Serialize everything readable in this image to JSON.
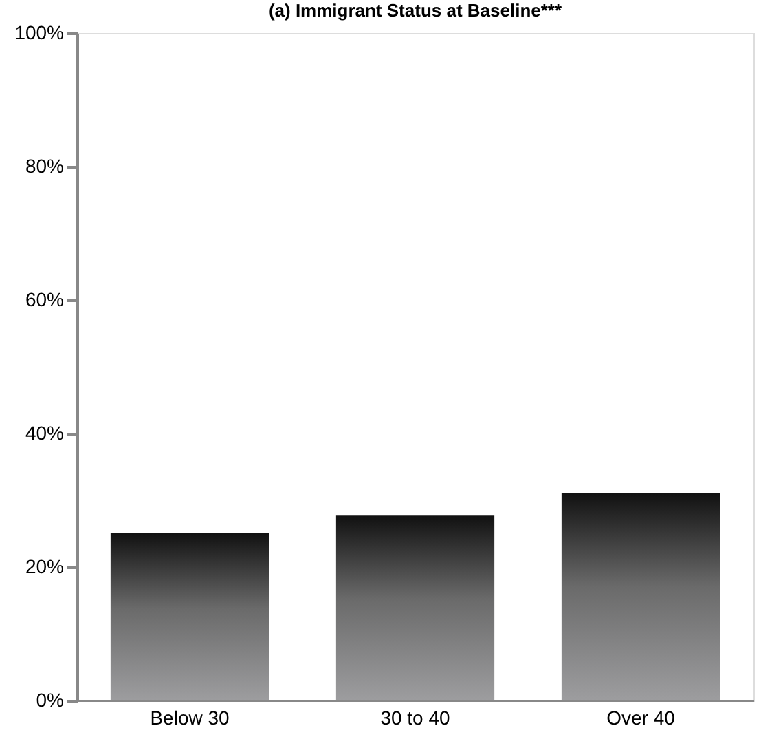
{
  "chart_data": {
    "type": "bar",
    "title": "(a) Immigrant Status at Baseline***",
    "categories": [
      "Below 30",
      "30 to 40",
      "Over 40"
    ],
    "values": [
      25.1,
      27.7,
      31.1
    ],
    "color": "#9d9d9f",
    "ylim": [
      0,
      100
    ],
    "yticks": [
      {
        "value": 0,
        "label": "0%"
      },
      {
        "value": 20,
        "label": "20%"
      },
      {
        "value": 40,
        "label": "40%"
      },
      {
        "value": 60,
        "label": "60%"
      },
      {
        "value": 80,
        "label": "80%"
      },
      {
        "value": 100,
        "label": "100%"
      }
    ],
    "grid": false
  }
}
